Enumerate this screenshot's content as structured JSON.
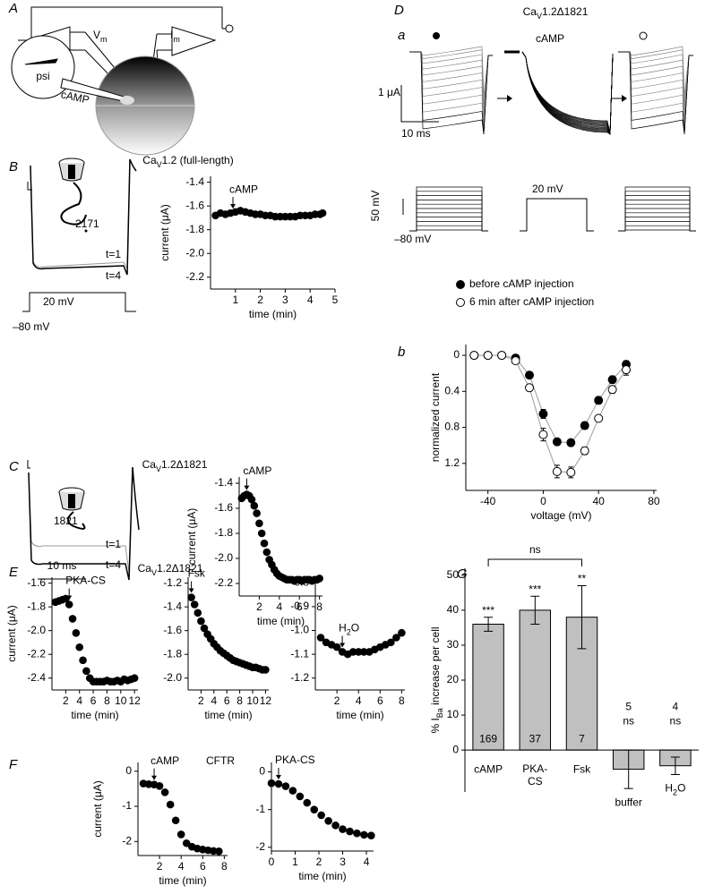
{
  "panel_letters": [
    "A",
    "B",
    "C",
    "D",
    "E",
    "F",
    "G"
  ],
  "sub_letters": [
    "a",
    "b"
  ],
  "diagram": {
    "vm": [
      "V",
      "m"
    ],
    "im": [
      "I",
      "m"
    ],
    "psi": "psi",
    "camp": "cAMP"
  },
  "traces": {
    "B": {
      "t1": "t=1",
      "t4": "t=4",
      "channel": "2171",
      "step": "20 mV",
      "hold": "–80 mV"
    },
    "C": {
      "t1": "t=1",
      "t4": "t=4",
      "channel": "1821",
      "scale": "10 ms"
    },
    "D": {
      "title": [
        "Ca",
        "V",
        "1.2Δ1821"
      ],
      "drug": "cAMP",
      "current_scale": "1 μA",
      "time_scale": "10 ms",
      "voltage_scale": "50 mV",
      "step": "20 mV",
      "hold": "–80 mV"
    }
  },
  "chart_data": [
    {
      "type": "scatter",
      "title": [
        "Ca",
        "V",
        "1.2 (full-length)"
      ],
      "xlabel": "time (min)",
      "ylabel": "current (μA)",
      "x": [
        0.2,
        0.4,
        0.6,
        0.8,
        1.0,
        1.2,
        1.4,
        1.6,
        1.8,
        2.0,
        2.2,
        2.4,
        2.6,
        2.8,
        3.0,
        3.2,
        3.4,
        3.6,
        3.8,
        4.0,
        4.2,
        4.4,
        4.5
      ],
      "series": [
        {
          "color": "#000",
          "marker": "filled",
          "values": [
            -1.68,
            -1.66,
            -1.67,
            -1.66,
            -1.65,
            -1.64,
            -1.65,
            -1.66,
            -1.67,
            -1.67,
            -1.68,
            -1.68,
            -1.69,
            -1.69,
            -1.69,
            -1.69,
            -1.69,
            -1.68,
            -1.68,
            -1.68,
            -1.67,
            -1.67,
            -1.66
          ]
        }
      ],
      "xlim": [
        0,
        5
      ],
      "xticks": [
        1,
        2,
        3,
        4,
        5
      ],
      "ylim": [
        -2.3,
        -1.35
      ],
      "yticks": [
        -1.4,
        -1.6,
        -1.8,
        {
          "value": -2,
          "label": "-2.0"
        },
        -2.2
      ],
      "annotations": [
        {
          "text": "cAMP",
          "x": 0.9
        }
      ],
      "annotation_color": "#000"
    },
    {
      "type": "scatter",
      "title": [
        "Ca",
        "V",
        "1.2Δ1821"
      ],
      "xlabel": "time (min)",
      "ylabel": "current (μA)",
      "x": [
        0.25,
        0.5,
        0.75,
        1.0,
        1.25,
        1.5,
        1.75,
        2.0,
        2.25,
        2.5,
        2.75,
        3.0,
        3.25,
        3.5,
        3.75,
        4.0,
        4.25,
        4.5,
        4.75,
        5.0,
        5.25,
        5.5,
        5.75,
        6.0,
        6.25,
        6.5,
        6.75,
        7.0,
        7.25,
        7.5,
        7.75,
        8.0
      ],
      "series": [
        {
          "color": "#000",
          "marker": "filled",
          "values": [
            -1.52,
            -1.5,
            -1.49,
            -1.5,
            -1.53,
            -1.58,
            -1.64,
            -1.72,
            -1.8,
            -1.88,
            -1.95,
            -2.01,
            -2.05,
            -2.09,
            -2.12,
            -2.14,
            -2.15,
            -2.16,
            -2.17,
            -2.17,
            -2.17,
            -2.18,
            -2.17,
            -2.17,
            -2.18,
            -2.17,
            -2.17,
            -2.17,
            -2.18,
            -2.17,
            -2.17,
            -2.16
          ]
        }
      ],
      "xlim": [
        0,
        8.3
      ],
      "xticks": [
        2,
        4,
        6,
        8
      ],
      "ylim": [
        -2.3,
        -1.35
      ],
      "yticks": [
        -1.4,
        -1.6,
        -1.8,
        {
          "value": -2,
          "label": "-2.0"
        },
        -2.2
      ],
      "annotations": [
        {
          "text": "cAMP",
          "x": 0.75
        }
      ],
      "annotation_color": "#000"
    },
    {
      "type": "scatter",
      "xlabel": "voltage (mV)",
      "ylabel": "normalized current",
      "y_inverted": true,
      "fit_line": "#aaa",
      "x": [
        -50,
        -40,
        -30,
        -20,
        -10,
        0,
        10,
        20,
        30,
        40,
        50,
        60
      ],
      "series": [
        {
          "name": "before cAMP injection",
          "color": "#000",
          "marker": "filled",
          "values": [
            0,
            0,
            0,
            0.03,
            0.22,
            0.65,
            0.96,
            0.97,
            0.78,
            0.5,
            0.27,
            0.1
          ],
          "errors": [
            0.01,
            0.01,
            0.01,
            0.02,
            0.03,
            0.05,
            0.03,
            0.02,
            0.04,
            0.04,
            0.04,
            0.04
          ]
        },
        {
          "name": "6 min after cAMP injection",
          "color": "#000",
          "marker": "open",
          "values": [
            0,
            0,
            0,
            0.06,
            0.36,
            0.88,
            1.29,
            1.3,
            1.06,
            0.7,
            0.38,
            0.16
          ],
          "errors": [
            0.01,
            0.01,
            0.01,
            0.03,
            0.03,
            0.07,
            0.07,
            0.06,
            0.04,
            0.03,
            0.04,
            0.06
          ]
        }
      ],
      "xlim": [
        -56,
        82
      ],
      "xticks": [
        -40,
        0,
        40,
        80
      ],
      "ylim": [
        -0.12,
        1.5
      ],
      "yticks": [
        0,
        0.4,
        0.8,
        1.2
      ]
    },
    {
      "type": "scatter",
      "title": [
        "Ca",
        "V",
        "1.2Δ1821"
      ],
      "xlabel": "time (min)",
      "ylabel": "current (μA)",
      "x": [
        0.5,
        1,
        1.5,
        2,
        2.5,
        3,
        3.5,
        4,
        4.5,
        5,
        5.5,
        6,
        6.5,
        7,
        7.5,
        8,
        8.5,
        9,
        9.5,
        10,
        10.5,
        11,
        11.5,
        12
      ],
      "series": [
        {
          "color": "#000",
          "marker": "filled",
          "values": [
            -1.76,
            -1.75,
            -1.74,
            -1.73,
            -1.78,
            -1.9,
            -2.02,
            -2.14,
            -2.25,
            -2.34,
            -2.4,
            -2.43,
            -2.43,
            -2.43,
            -2.43,
            -2.42,
            -2.43,
            -2.43,
            -2.42,
            -2.43,
            -2.41,
            -2.42,
            -2.41,
            -2.4
          ]
        }
      ],
      "xlim": [
        0,
        12.5
      ],
      "xticks": [
        2,
        4,
        6,
        8,
        10,
        12
      ],
      "ylim": [
        -2.5,
        -1.55
      ],
      "yticks": [
        -1.6,
        -1.8,
        {
          "value": -2,
          "label": "-2.0"
        },
        -2.2,
        -2.4
      ],
      "annotations": [
        {
          "text": "PKA-CS",
          "x": 2.5
        }
      ],
      "annotation_color": "#777"
    },
    {
      "type": "scatter",
      "xlabel": "time (min)",
      "x": [
        0.5,
        1,
        1.5,
        2,
        2.5,
        3,
        3.5,
        4,
        4.5,
        5,
        5.5,
        6,
        6.5,
        7,
        7.5,
        8,
        8.5,
        9,
        9.5,
        10,
        10.5,
        11,
        11.5,
        12
      ],
      "series": [
        {
          "color": "#000",
          "marker": "filled",
          "values": [
            -1.32,
            -1.38,
            -1.45,
            -1.52,
            -1.58,
            -1.63,
            -1.67,
            -1.71,
            -1.74,
            -1.77,
            -1.79,
            -1.81,
            -1.83,
            -1.85,
            -1.86,
            -1.87,
            -1.88,
            -1.89,
            -1.9,
            -1.91,
            -1.91,
            -1.92,
            -1.93,
            -1.93
          ]
        }
      ],
      "xlim": [
        0,
        12.5
      ],
      "xticks": [
        2,
        4,
        6,
        8,
        10,
        12
      ],
      "ylim": [
        -2.1,
        -1.15
      ],
      "yticks": [
        -1.2,
        -1.4,
        -1.6,
        -1.8,
        {
          "value": -2,
          "label": "-2.0"
        }
      ],
      "annotations": [
        {
          "text": "Fsk",
          "x": 0.5
        }
      ],
      "annotation_color": "#777"
    },
    {
      "type": "scatter",
      "xlabel": "time (min)",
      "x": [
        0.5,
        1,
        1.5,
        2,
        2.5,
        3,
        3.5,
        4,
        4.5,
        5,
        5.5,
        6,
        6.5,
        7,
        7.5,
        8
      ],
      "series": [
        {
          "color": "#000",
          "marker": "filled",
          "values": [
            -1.03,
            -1.05,
            -1.06,
            -1.07,
            -1.09,
            -1.1,
            -1.09,
            -1.09,
            -1.09,
            -1.09,
            -1.08,
            -1.07,
            -1.06,
            -1.05,
            -1.03,
            -1.01
          ]
        }
      ],
      "xlim": [
        0,
        8.3
      ],
      "xticks": [
        2,
        4,
        6,
        8
      ],
      "ylim": [
        -1.25,
        -0.78
      ],
      "yticks": [
        -0.8,
        -0.9,
        {
          "value": -1,
          "label": "-1.0"
        },
        -1.1,
        -1.2
      ],
      "annotations": [
        {
          "text": [
            "H",
            "2",
            "O"
          ],
          "x": 2.5
        }
      ],
      "annotation_color": "#777"
    },
    {
      "type": "scatter",
      "title": "CFTR",
      "xlabel": "time (min)",
      "ylabel": "current (μA)",
      "x": [
        0.5,
        1,
        1.5,
        2,
        2.5,
        3,
        3.5,
        4,
        4.5,
        5,
        5.5,
        6,
        6.5,
        7,
        7.5
      ],
      "series": [
        {
          "color": "#000",
          "marker": "filled",
          "values": [
            -0.35,
            -0.37,
            -0.38,
            -0.42,
            -0.6,
            -0.95,
            -1.4,
            -1.8,
            -2.05,
            -2.15,
            -2.2,
            -2.23,
            -2.25,
            -2.27,
            -2.28
          ]
        }
      ],
      "xlim": [
        0,
        8.3
      ],
      "xticks": [
        2,
        4,
        6,
        8
      ],
      "ylim": [
        -2.4,
        0.25
      ],
      "yticks": [
        0,
        -1,
        -2
      ],
      "annotations": [
        {
          "text": "cAMP",
          "x": 1.5
        }
      ],
      "annotation_color": "#777"
    },
    {
      "type": "scatter",
      "xlabel": "time (min)",
      "x": [
        0,
        0.3,
        0.6,
        0.9,
        1.2,
        1.5,
        1.8,
        2.1,
        2.4,
        2.7,
        3.0,
        3.3,
        3.6,
        3.9,
        4.2
      ],
      "series": [
        {
          "color": "#000",
          "marker": "filled",
          "values": [
            -0.3,
            -0.32,
            -0.38,
            -0.5,
            -0.65,
            -0.82,
            -1.0,
            -1.15,
            -1.3,
            -1.42,
            -1.52,
            -1.58,
            -1.63,
            -1.67,
            -1.69
          ]
        }
      ],
      "xlim": [
        0,
        4.3
      ],
      "xticks": [
        0,
        1,
        2,
        3,
        4
      ],
      "ylim": [
        -2.1,
        0.25
      ],
      "yticks": [
        0,
        -1,
        -2
      ],
      "annotations": [
        {
          "text": "PKA-CS",
          "x": 0.3
        }
      ],
      "annotation_color": "#777"
    },
    {
      "type": "bar",
      "ylabel": [
        "% I",
        "Ba",
        " increase per cell"
      ],
      "categories": [
        "cAMP",
        "PKA-\nCS",
        "Fsk",
        "buffer",
        [
          "H",
          "2",
          "O"
        ]
      ],
      "values": [
        36,
        40,
        38,
        -5.5,
        -4.5
      ],
      "errors": [
        2,
        4,
        9,
        5.5,
        2.5
      ],
      "n_labels": [
        169,
        37,
        7,
        5,
        4
      ],
      "significance": [
        "***",
        "***",
        "**",
        "ns",
        "ns"
      ],
      "bracket_label": "ns",
      "color": "#c0c0c0",
      "ylim": [
        -12,
        52
      ],
      "yticks": [
        0,
        10,
        20,
        30,
        40,
        50
      ]
    }
  ]
}
